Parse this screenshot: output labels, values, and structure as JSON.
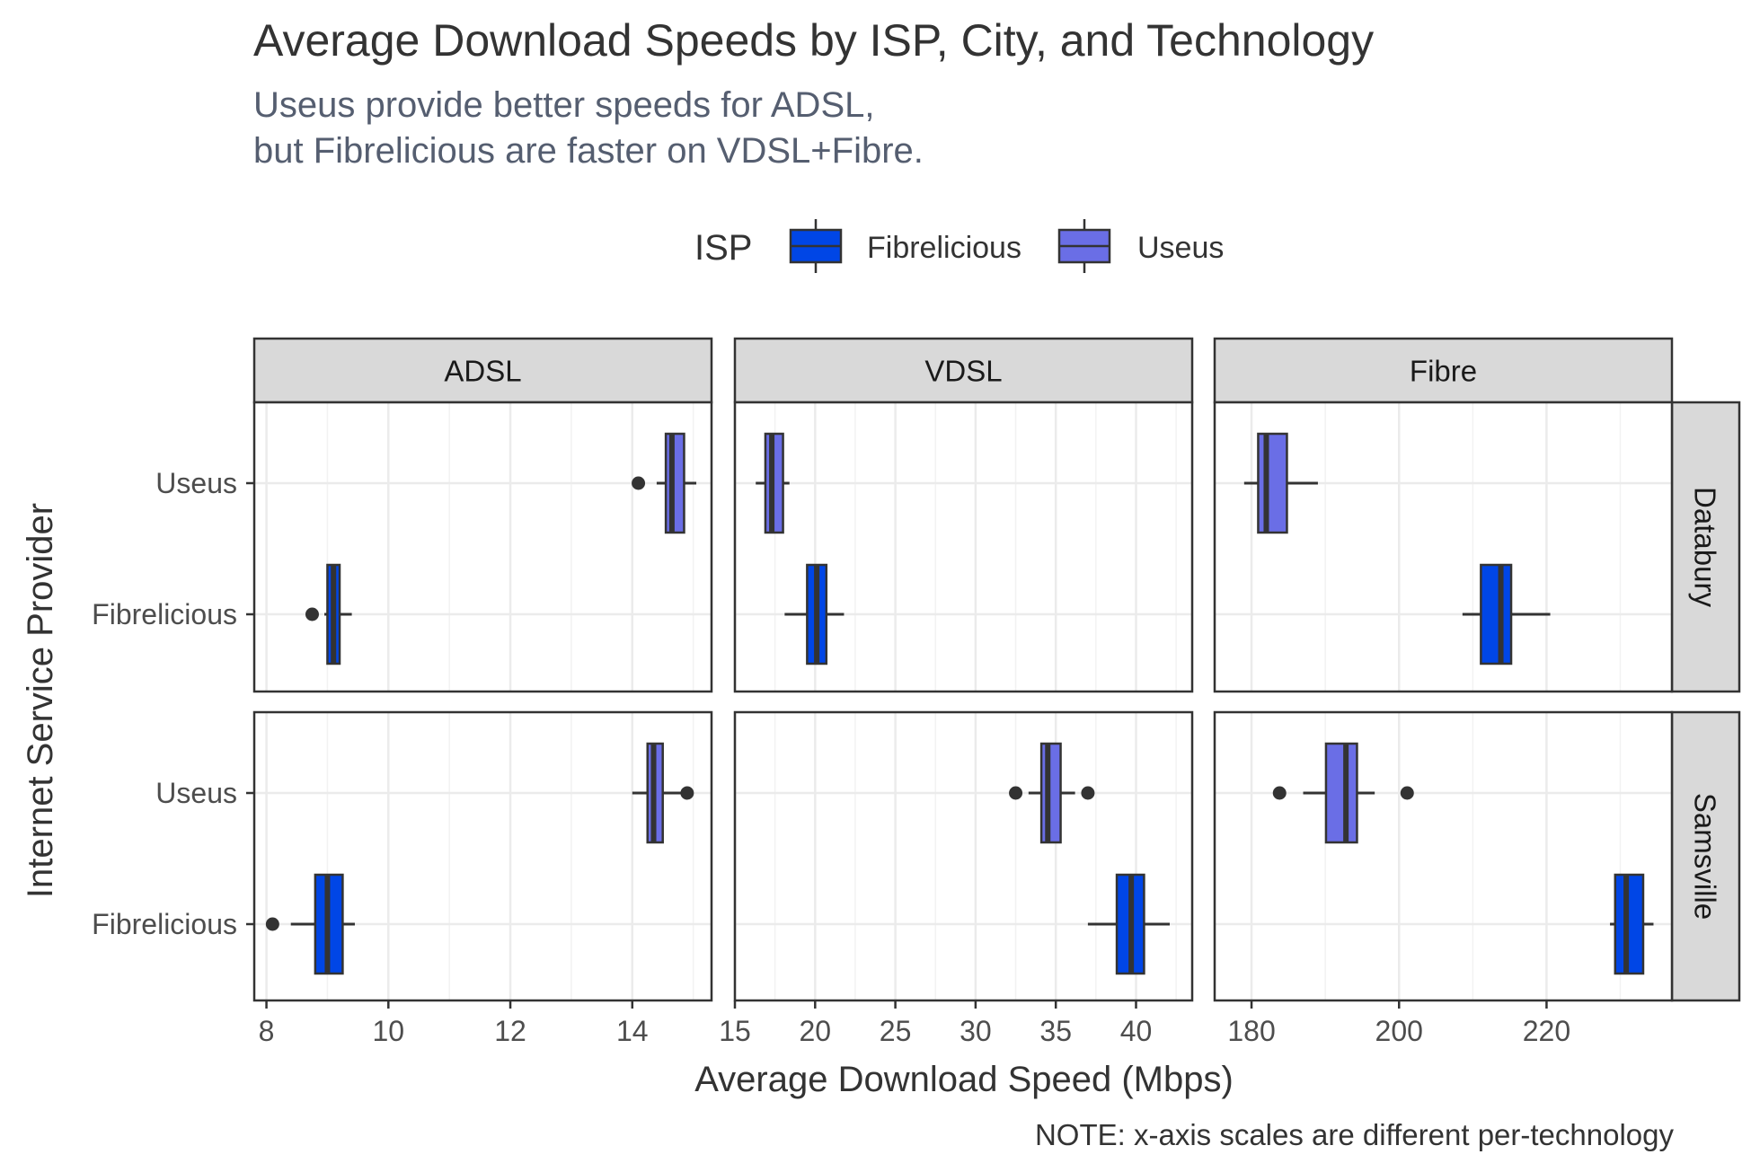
{
  "chart_data": {
    "type": "boxplot",
    "title": "Average Download Speeds by ISP, City, and Technology",
    "subtitle_lines": [
      "Useus provide better speeds for ADSL,",
      "but Fibrelicious are faster on VDSL+Fibre."
    ],
    "xlabel": "Average Download Speed (Mbps)",
    "ylabel": "Internet Service Provider",
    "caption": "NOTE: x-axis scales are different per-technology",
    "legend": {
      "title": "ISP",
      "position": "top",
      "items": [
        {
          "name": "Fibrelicious",
          "color": "#0046E6"
        },
        {
          "name": "Useus",
          "color": "#6A6EE6"
        }
      ]
    },
    "y_categories": [
      "Useus",
      "Fibrelicious"
    ],
    "columns": [
      {
        "name": "ADSL",
        "xlim": [
          7.8,
          15.3
        ],
        "ticks": [
          8,
          10,
          12,
          14
        ]
      },
      {
        "name": "VDSL",
        "xlim": [
          15.0,
          43.5
        ],
        "ticks": [
          15,
          20,
          25,
          30,
          35,
          40
        ]
      },
      {
        "name": "Fibre",
        "xlim": [
          175.0,
          237.0
        ],
        "ticks": [
          180,
          200,
          220
        ]
      }
    ],
    "rows": [
      "Databury",
      "Samsville"
    ],
    "grid": true,
    "boxes": [
      {
        "tech": "ADSL",
        "city": "Databury",
        "isp": "Useus",
        "whisker_low": 14.4,
        "q1": 14.55,
        "median": 14.65,
        "q3": 14.85,
        "whisker_high": 15.05,
        "outliers": [
          14.1
        ]
      },
      {
        "tech": "ADSL",
        "city": "Databury",
        "isp": "Fibrelicious",
        "whisker_low": 8.95,
        "q1": 9.0,
        "median": 9.1,
        "q3": 9.2,
        "whisker_high": 9.4,
        "outliers": [
          8.75
        ]
      },
      {
        "tech": "ADSL",
        "city": "Samsville",
        "isp": "Useus",
        "whisker_low": 14.0,
        "q1": 14.25,
        "median": 14.35,
        "q3": 14.5,
        "whisker_high": 14.8,
        "outliers": [
          14.9
        ]
      },
      {
        "tech": "ADSL",
        "city": "Samsville",
        "isp": "Fibrelicious",
        "whisker_low": 8.4,
        "q1": 8.8,
        "median": 9.0,
        "q3": 9.25,
        "whisker_high": 9.45,
        "outliers": [
          8.1
        ]
      },
      {
        "tech": "VDSL",
        "city": "Databury",
        "isp": "Useus",
        "whisker_low": 16.3,
        "q1": 16.9,
        "median": 17.3,
        "q3": 18.0,
        "whisker_high": 18.4,
        "outliers": []
      },
      {
        "tech": "VDSL",
        "city": "Databury",
        "isp": "Fibrelicious",
        "whisker_low": 18.1,
        "q1": 19.5,
        "median": 20.1,
        "q3": 20.7,
        "whisker_high": 21.8,
        "outliers": []
      },
      {
        "tech": "VDSL",
        "city": "Samsville",
        "isp": "Useus",
        "whisker_low": 33.3,
        "q1": 34.1,
        "median": 34.5,
        "q3": 35.3,
        "whisker_high": 36.2,
        "outliers": [
          32.5,
          37.0
        ]
      },
      {
        "tech": "VDSL",
        "city": "Samsville",
        "isp": "Fibrelicious",
        "whisker_low": 37.0,
        "q1": 38.8,
        "median": 39.7,
        "q3": 40.5,
        "whisker_high": 42.1,
        "outliers": []
      },
      {
        "tech": "Fibre",
        "city": "Databury",
        "isp": "Useus",
        "whisker_low": 179.0,
        "q1": 180.9,
        "median": 182.0,
        "q3": 184.8,
        "whisker_high": 189.0,
        "outliers": []
      },
      {
        "tech": "Fibre",
        "city": "Databury",
        "isp": "Fibrelicious",
        "whisker_low": 208.6,
        "q1": 211.1,
        "median": 213.8,
        "q3": 215.2,
        "whisker_high": 220.5,
        "outliers": []
      },
      {
        "tech": "Fibre",
        "city": "Samsville",
        "isp": "Useus",
        "whisker_low": 187.0,
        "q1": 190.1,
        "median": 192.8,
        "q3": 194.3,
        "whisker_high": 196.7,
        "outliers": [
          183.8,
          201.1
        ]
      },
      {
        "tech": "Fibre",
        "city": "Samsville",
        "isp": "Fibrelicious",
        "whisker_low": 228.6,
        "q1": 229.3,
        "median": 230.8,
        "q3": 233.1,
        "whisker_high": 234.5,
        "outliers": []
      }
    ]
  }
}
